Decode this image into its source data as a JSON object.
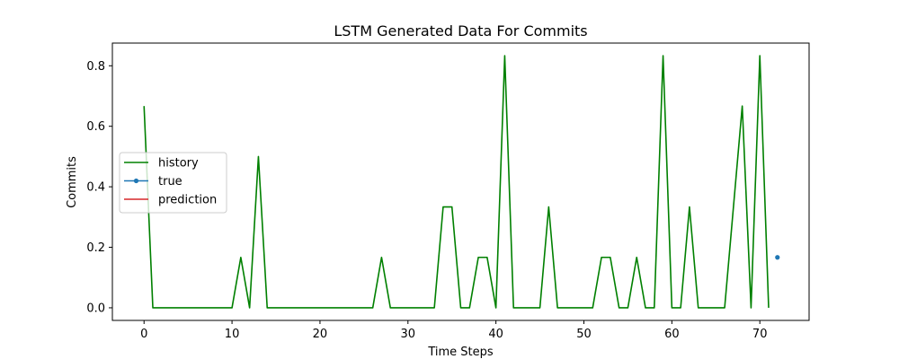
{
  "chart_data": {
    "type": "line",
    "title": "LSTM Generated Data For Commits",
    "xlabel": "Time Steps",
    "ylabel": "Commits",
    "xlim": [
      -3.6,
      75.6
    ],
    "ylim": [
      -0.0417,
      0.875
    ],
    "xticks": [
      0,
      10,
      20,
      30,
      40,
      50,
      60,
      70
    ],
    "yticks": [
      0.0,
      0.2,
      0.4,
      0.6,
      0.8
    ],
    "ytick_labels": [
      "0.0",
      "0.2",
      "0.4",
      "0.6",
      "0.8"
    ],
    "grid": false,
    "legend": "center-left",
    "series": [
      {
        "name": "history",
        "color": "#008000",
        "style": "line",
        "x": [
          0,
          1,
          2,
          3,
          4,
          5,
          6,
          7,
          8,
          9,
          10,
          11,
          12,
          13,
          14,
          15,
          16,
          17,
          18,
          19,
          20,
          21,
          22,
          23,
          24,
          25,
          26,
          27,
          28,
          29,
          30,
          31,
          32,
          33,
          34,
          35,
          36,
          37,
          38,
          39,
          40,
          41,
          42,
          43,
          44,
          45,
          46,
          47,
          48,
          49,
          50,
          51,
          52,
          53,
          54,
          55,
          56,
          57,
          58,
          59,
          60,
          61,
          62,
          63,
          64,
          65,
          66,
          67,
          68,
          69,
          70,
          71
        ],
        "y": [
          0.6667,
          0,
          0,
          0,
          0,
          0,
          0,
          0,
          0,
          0,
          0,
          0.1667,
          0,
          0.5,
          0,
          0,
          0,
          0,
          0,
          0,
          0,
          0,
          0,
          0,
          0,
          0,
          0,
          0.1667,
          0,
          0,
          0,
          0,
          0,
          0,
          0.3333,
          0.3333,
          0,
          0,
          0.1667,
          0.1667,
          0,
          0.8333,
          0,
          0,
          0,
          0,
          0.3333,
          0,
          0,
          0,
          0,
          0,
          0.1667,
          0.1667,
          0,
          0,
          0.1667,
          0,
          0,
          0.8333,
          0,
          0,
          0.3333,
          0,
          0,
          0,
          0,
          0.3333,
          0.6667,
          0,
          0.8333,
          0
        ]
      },
      {
        "name": "true",
        "color": "#1f77b4",
        "style": "marker",
        "x": [
          72
        ],
        "y": [
          0.1667
        ]
      },
      {
        "name": "prediction",
        "color": "#d62728",
        "style": "line",
        "x": [],
        "y": []
      }
    ]
  }
}
